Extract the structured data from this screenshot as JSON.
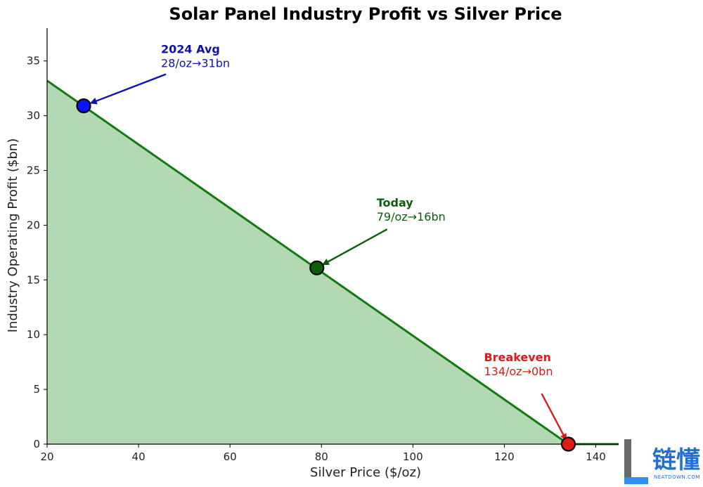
{
  "chart_data": {
    "type": "area",
    "title": "Solar Panel Industry Profit vs Silver Price",
    "xlabel": "Silver Price ($/oz)",
    "ylabel": "Industry Operating Profit ($bn)",
    "xlim": [
      20,
      145
    ],
    "ylim": [
      0,
      38
    ],
    "xticks": [
      20,
      40,
      60,
      80,
      100,
      120,
      140
    ],
    "yticks": [
      0,
      5,
      10,
      15,
      20,
      25,
      30,
      35
    ],
    "grid": false,
    "colors": {
      "line": "#117a11",
      "fill": "#b3d9b3"
    },
    "series": [
      {
        "x": [
          20,
          134,
          145
        ],
        "y": [
          33.2,
          0,
          0
        ]
      }
    ],
    "points": [
      {
        "x": 28,
        "y": 30.9,
        "color": "#0a14ff",
        "head": "2024 Avg",
        "body": "28/oz→31bn"
      },
      {
        "x": 79,
        "y": 16.1,
        "color": "#0b5e0b",
        "head": "Today",
        "body": "79/oz→16bn"
      },
      {
        "x": 134,
        "y": 0,
        "color": "#e01919",
        "head": "Breakeven",
        "body": "134/oz→0bn"
      }
    ]
  },
  "watermark": {
    "logo": "链懂",
    "sub": "NEATDOWN.COM"
  }
}
